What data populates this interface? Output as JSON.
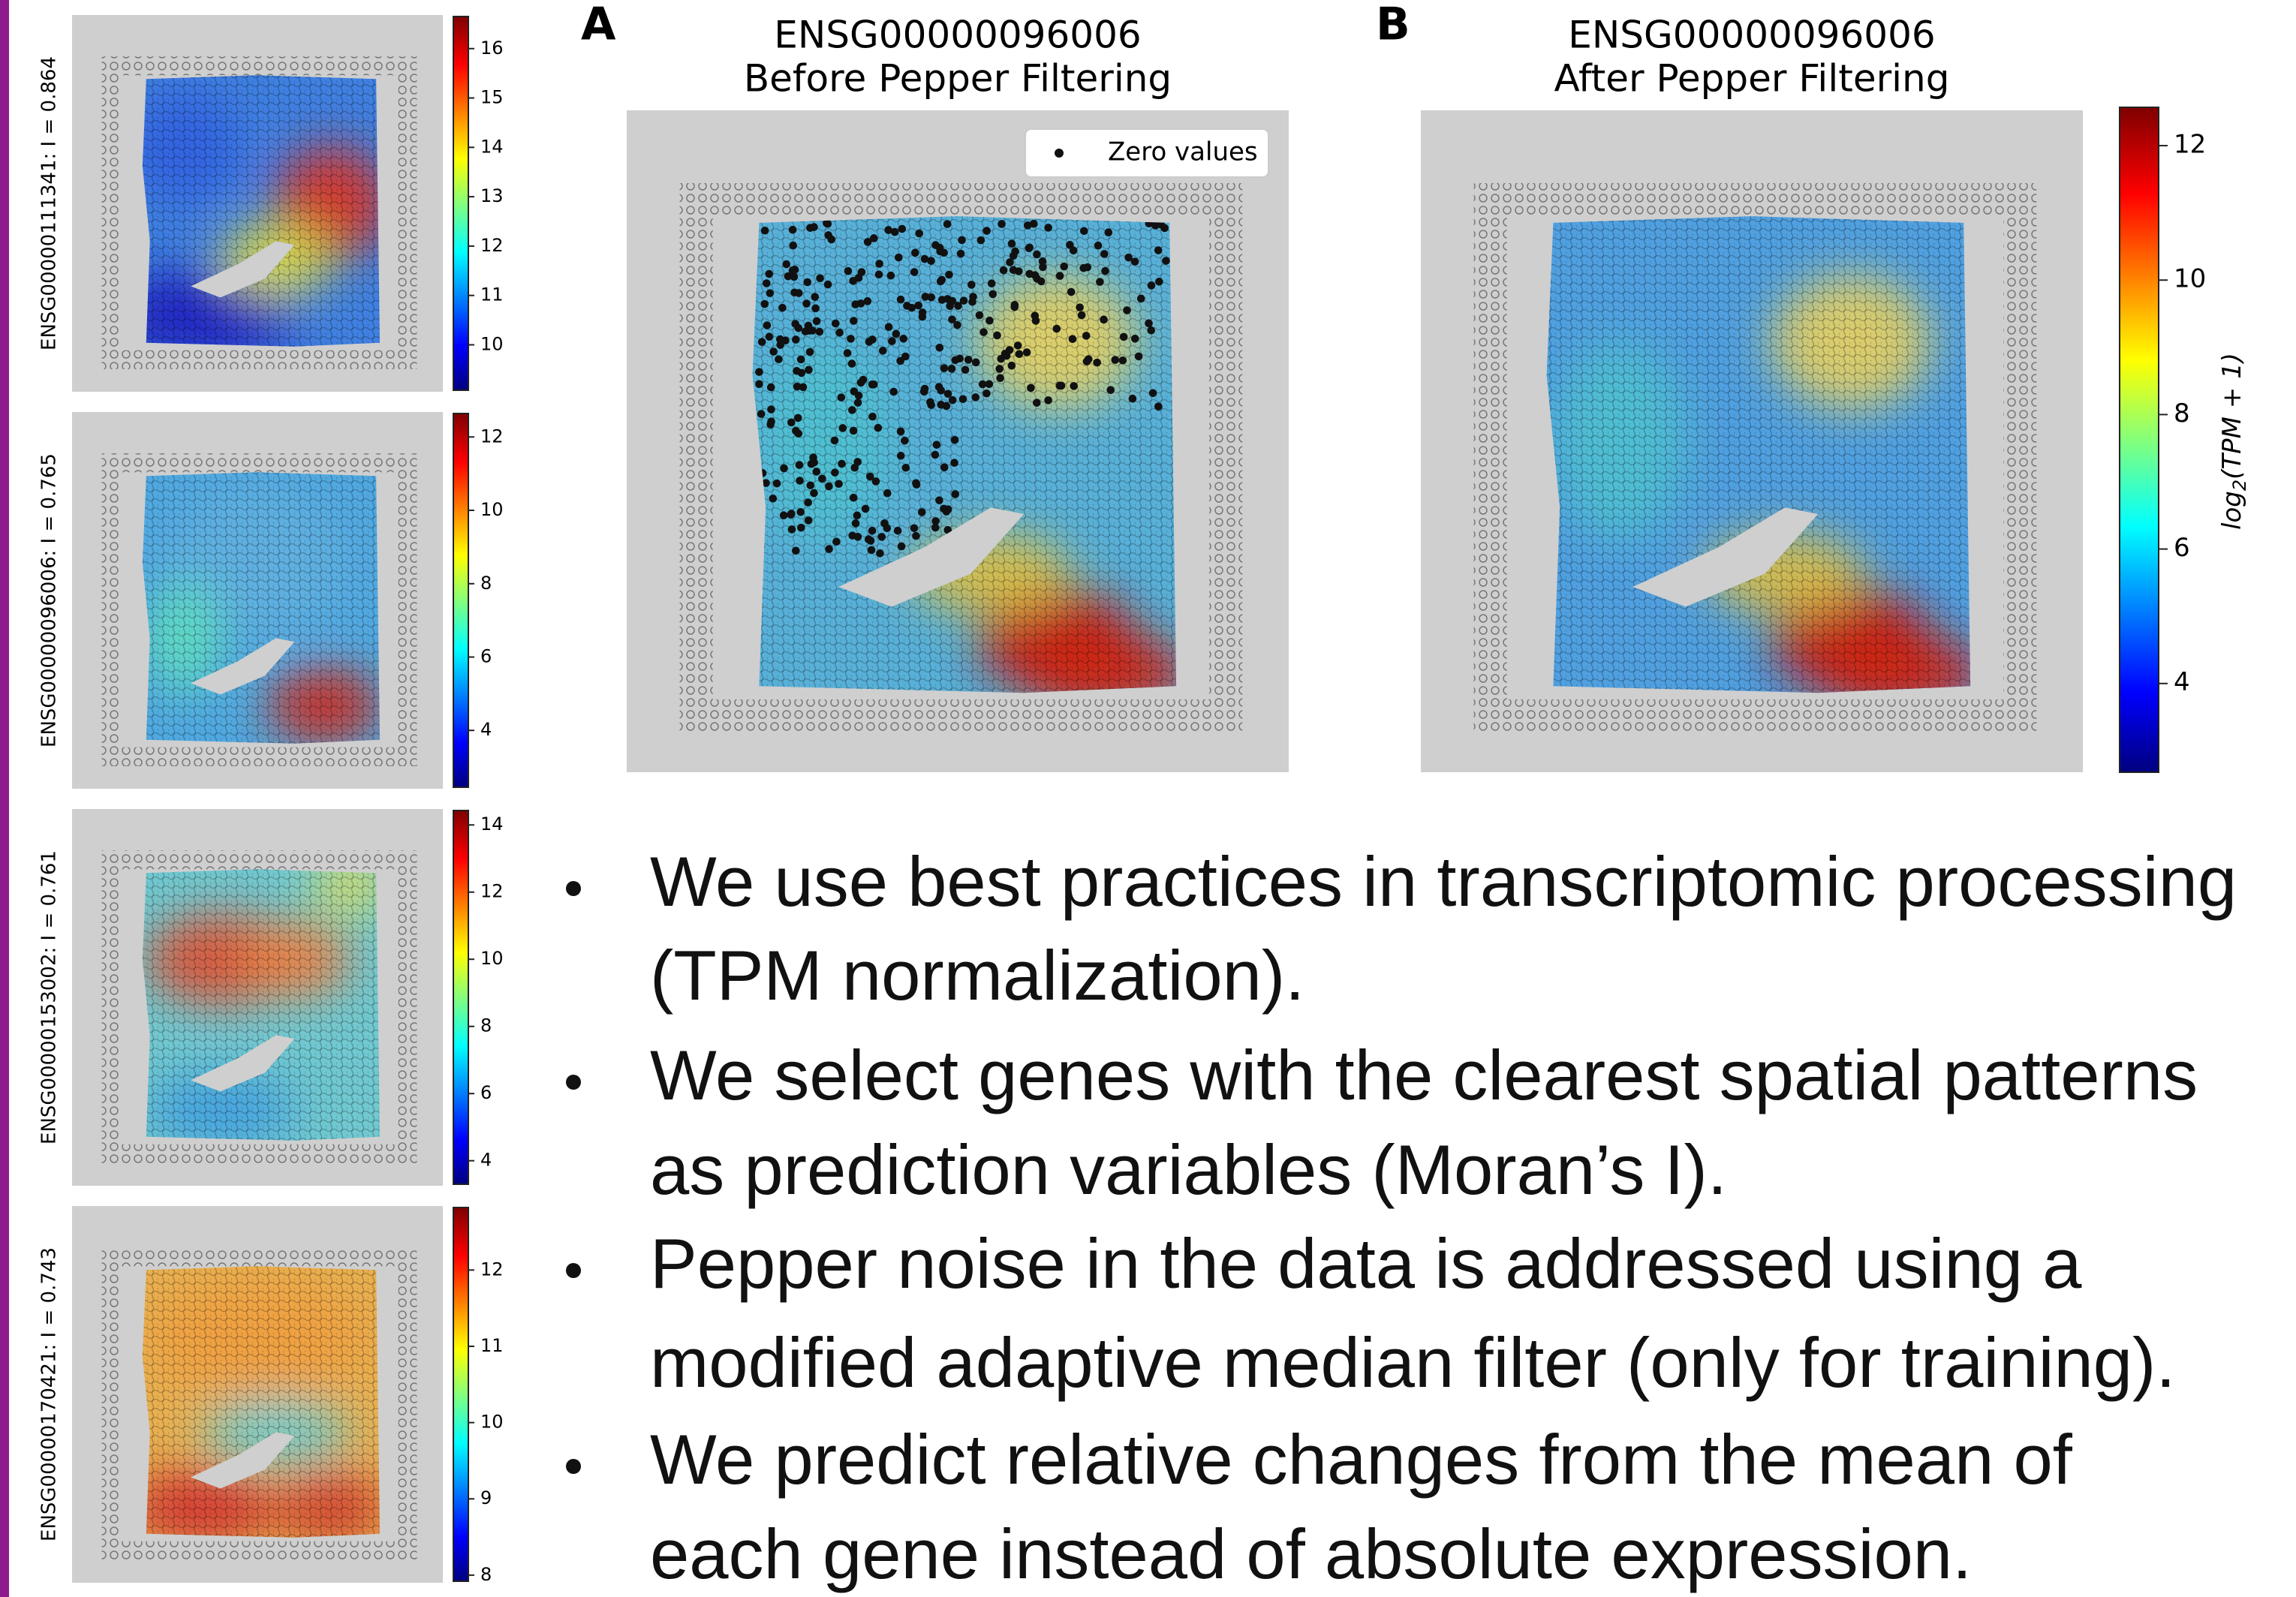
{
  "side_panels": [
    {
      "label": "ENSG00000111341: I = 0.864",
      "clim": [
        9.08,
        16.65
      ],
      "ticks": [
        10,
        11,
        12,
        13,
        14,
        15,
        16
      ]
    },
    {
      "label": "ENSG00000096006: I = 0.765",
      "clim": [
        2.45,
        12.64
      ],
      "ticks": [
        4,
        6,
        8,
        10,
        12
      ]
    },
    {
      "label": "ENSG00000153002: I = 0.761",
      "clim": [
        3.3,
        14.43
      ],
      "ticks": [
        4,
        6,
        8,
        10,
        12,
        14
      ]
    },
    {
      "label": "ENSG00000170421: I = 0.743",
      "clim": [
        7.92,
        12.82
      ],
      "ticks": [
        8,
        9,
        10,
        11,
        12
      ]
    }
  ],
  "panel_a": {
    "letter": "A",
    "title": "ENSG00000096006",
    "subtitle": "Before Pepper Filtering",
    "legend": "Zero values"
  },
  "panel_b": {
    "letter": "B",
    "title": "ENSG00000096006",
    "subtitle": "After Pepper Filtering"
  },
  "colorbar": {
    "label": {
      "base": "log",
      "sub": "2",
      "rest": "(TPM + 1)"
    },
    "clim": [
      2.68,
      12.57
    ],
    "ticks": [
      4,
      6,
      8,
      10,
      12
    ]
  },
  "bullets": [
    [
      "We use best practices in transcriptomic processing",
      "(TPM normalization)."
    ],
    [
      "We select genes with the clearest spatial patterns",
      "as prediction variables (Moran’s I)."
    ],
    [
      "Pepper noise in the data is addressed using a",
      "modified adaptive median filter (only for training)."
    ],
    [
      "We predict relative changes from the mean of",
      "each gene instead of absolute expression."
    ]
  ]
}
